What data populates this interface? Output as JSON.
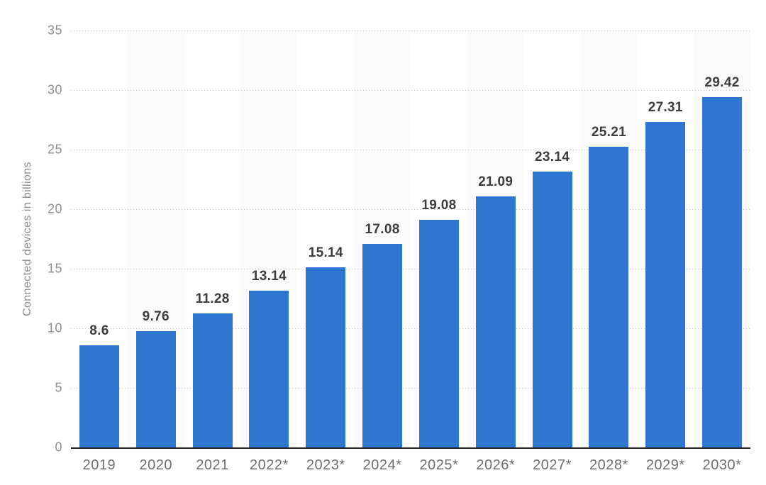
{
  "chart_data": {
    "type": "bar",
    "title": "",
    "ylabel": "Connected devices in billions",
    "xlabel": "",
    "categories": [
      "2019",
      "2020",
      "2021",
      "2022*",
      "2023*",
      "2024*",
      "2025*",
      "2026*",
      "2027*",
      "2028*",
      "2029*",
      "2030*"
    ],
    "values": [
      8.6,
      9.76,
      11.28,
      13.14,
      15.14,
      17.08,
      19.08,
      21.09,
      23.14,
      25.21,
      27.31,
      29.42
    ],
    "y_ticks": [
      0,
      5,
      10,
      15,
      20,
      25,
      30,
      35
    ],
    "ylim": [
      0,
      35
    ],
    "grid": "horizontal-dotted",
    "legend": "none",
    "bar_color": "#2d76d2",
    "stripe_color": "#fafafa",
    "axis_line_color": "#262626",
    "value_label_color": "#3d3d3d",
    "tick_label_color": "#8f8f8f"
  }
}
